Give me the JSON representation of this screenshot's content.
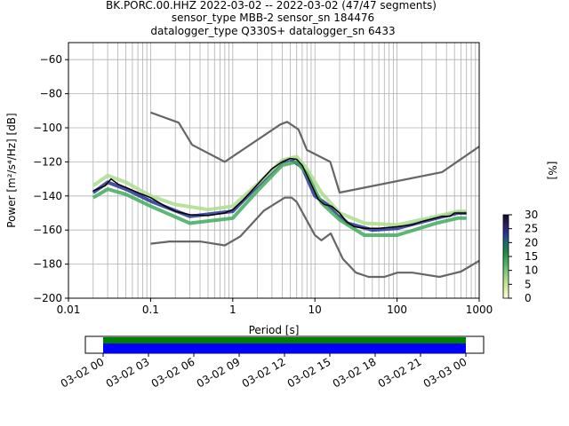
{
  "header": {
    "line1": "BK.PORC.00.HHZ   2022-03-02 -- 2022-03-02  (47/47 segments)",
    "line2": "sensor_type MBB-2 sensor_sn 184476",
    "line3": "datalogger_type Q330S+ datalogger_sn 6433"
  },
  "chart_data": [
    {
      "type": "heatmap",
      "xlabel": "Period [s]",
      "ylabel": "Power [m²/s⁴/Hz] [dB]",
      "x_scale": "log",
      "xlim": [
        0.01,
        1000
      ],
      "ylim": [
        -200,
        -50
      ],
      "grid": true,
      "x_ticks": [
        {
          "v": 0.01,
          "label": "0.01"
        },
        {
          "v": 0.1,
          "label": "0.1"
        },
        {
          "v": 1,
          "label": "1"
        },
        {
          "v": 10,
          "label": "10"
        },
        {
          "v": 100,
          "label": "100"
        },
        {
          "v": 1000,
          "label": "1000"
        }
      ],
      "y_ticks": [
        -60,
        -80,
        -100,
        -120,
        -140,
        -160,
        -180,
        -200
      ],
      "colorbar": {
        "label": "[%]",
        "ticks": [
          0,
          5,
          10,
          15,
          20,
          25,
          30
        ],
        "range": [
          0,
          30
        ],
        "colors": [
          "#ffffe5",
          "#d9f0a3",
          "#addd8e",
          "#78c679",
          "#41ab5d",
          "#238443",
          "#1d6b6e",
          "#253494",
          "#2c1d5c",
          "#140a2a"
        ]
      },
      "series": [
        {
          "role": "reference-high",
          "color": "#666666",
          "points": [
            [
              0.1,
              -91
            ],
            [
              0.22,
              -97
            ],
            [
              0.32,
              -110
            ],
            [
              0.8,
              -120
            ],
            [
              3.8,
              -98
            ],
            [
              4.6,
              -96.5
            ],
            [
              6.3,
              -101
            ],
            [
              8,
              -113
            ],
            [
              15.4,
              -120
            ],
            [
              20,
              -138
            ],
            [
              354,
              -126
            ],
            [
              1000,
              -111
            ]
          ]
        },
        {
          "role": "reference-low",
          "color": "#666666",
          "points": [
            [
              0.1,
              -168
            ],
            [
              0.17,
              -166.7
            ],
            [
              0.4,
              -166.7
            ],
            [
              0.8,
              -169
            ],
            [
              1.24,
              -163.7
            ],
            [
              2.4,
              -148.6
            ],
            [
              4.3,
              -141
            ],
            [
              5.2,
              -141
            ],
            [
              6,
              -143.5
            ],
            [
              10,
              -163
            ],
            [
              12,
              -166
            ],
            [
              15.6,
              -162
            ],
            [
              21.9,
              -177
            ],
            [
              31.6,
              -185
            ],
            [
              45,
              -187.5
            ],
            [
              70,
              -187.5
            ],
            [
              101,
              -185
            ],
            [
              154,
              -185
            ],
            [
              328,
              -187.5
            ],
            [
              600,
              -184.4
            ],
            [
              1000,
              -178
            ]
          ]
        },
        {
          "role": "mode",
          "color": "#000000",
          "points": [
            [
              0.02,
              -137
            ],
            [
              0.025,
              -135
            ],
            [
              0.028,
              -134
            ],
            [
              0.033,
              -130
            ],
            [
              0.04,
              -133
            ],
            [
              0.05,
              -135
            ],
            [
              0.07,
              -138
            ],
            [
              0.1,
              -141
            ],
            [
              0.15,
              -146
            ],
            [
              0.2,
              -149
            ],
            [
              0.3,
              -151
            ],
            [
              0.5,
              -151.5
            ],
            [
              0.8,
              -150
            ],
            [
              1,
              -148
            ],
            [
              1.3,
              -143
            ],
            [
              1.7,
              -137
            ],
            [
              2.3,
              -130
            ],
            [
              3,
              -124
            ],
            [
              4,
              -120
            ],
            [
              5,
              -118
            ],
            [
              6,
              -118.5
            ],
            [
              7,
              -122
            ],
            [
              9,
              -133
            ],
            [
              11,
              -142
            ],
            [
              13,
              -145
            ],
            [
              16,
              -146
            ],
            [
              20,
              -150
            ],
            [
              24,
              -155
            ],
            [
              30,
              -158
            ],
            [
              40,
              -159
            ],
            [
              60,
              -159
            ],
            [
              100,
              -158
            ],
            [
              150,
              -157
            ],
            [
              200,
              -155
            ],
            [
              350,
              -152
            ],
            [
              440,
              -152
            ],
            [
              500,
              -150
            ],
            [
              700,
              -150
            ]
          ]
        }
      ],
      "density_bands": [
        {
          "points": [
            [
              0.02,
              -138
            ],
            [
              0.03,
              -132
            ],
            [
              0.05,
              -136
            ],
            [
              0.1,
              -143
            ],
            [
              0.3,
              -152
            ],
            [
              1,
              -149
            ],
            [
              2,
              -134
            ],
            [
              4,
              -120
            ],
            [
              5,
              -118.5
            ],
            [
              7,
              -123
            ],
            [
              10,
              -140
            ],
            [
              15,
              -146
            ],
            [
              25,
              -156
            ],
            [
              50,
              -160
            ],
            [
              100,
              -159
            ],
            [
              300,
              -153
            ],
            [
              550,
              -150
            ],
            [
              700,
              -150
            ]
          ],
          "percent": 22
        },
        {
          "points": [
            [
              0.02,
              -134
            ],
            [
              0.03,
              -128
            ],
            [
              0.05,
              -132
            ],
            [
              0.1,
              -140
            ],
            [
              0.2,
              -145
            ],
            [
              0.5,
              -148
            ],
            [
              1,
              -146
            ],
            [
              2,
              -133
            ],
            [
              4,
              -119
            ],
            [
              6,
              -117
            ],
            [
              8,
              -124
            ],
            [
              12,
              -138
            ],
            [
              20,
              -150
            ],
            [
              40,
              -156
            ],
            [
              100,
              -157
            ],
            [
              300,
              -152
            ],
            [
              550,
              -149
            ],
            [
              700,
              -149
            ]
          ],
          "percent": 5
        },
        {
          "points": [
            [
              0.02,
              -141
            ],
            [
              0.03,
              -136
            ],
            [
              0.05,
              -139
            ],
            [
              0.1,
              -146
            ],
            [
              0.3,
              -156
            ],
            [
              1,
              -153
            ],
            [
              2,
              -137
            ],
            [
              4,
              -122
            ],
            [
              6,
              -120
            ],
            [
              8,
              -127
            ],
            [
              12,
              -144
            ],
            [
              20,
              -154
            ],
            [
              40,
              -163
            ],
            [
              100,
              -163
            ],
            [
              300,
              -156
            ],
            [
              550,
              -153
            ],
            [
              700,
              -153
            ]
          ],
          "percent": 12
        }
      ]
    },
    {
      "type": "timeline",
      "x_ticks": [
        "03-02 00",
        "03-02 03",
        "03-02 06",
        "03-02 09",
        "03-02 12",
        "03-02 15",
        "03-02 18",
        "03-02 21",
        "03-03 00"
      ],
      "coverage_start_hour": 0,
      "coverage_end_hour": 24,
      "colors": {
        "available": "#008000",
        "used": "#0000ff"
      }
    }
  ]
}
